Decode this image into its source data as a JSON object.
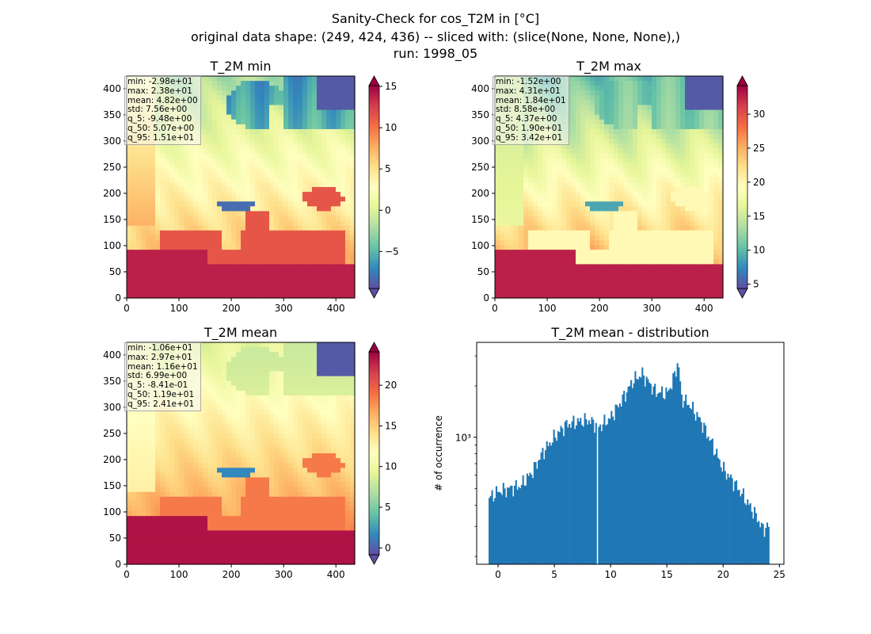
{
  "figure": {
    "title_lines": [
      "Sanity-Check for cos_T2M in [°C]",
      "original data shape: (249, 424, 436) -- sliced with: (slice(None, None, None),)",
      "run: 1998_05"
    ]
  },
  "chart_data": [
    {
      "type": "heatmap",
      "title": "T_2M min",
      "colormap": "Spectral_r",
      "xticks": [
        0,
        100,
        200,
        300,
        400
      ],
      "yticks": [
        0,
        50,
        100,
        150,
        200,
        250,
        300,
        350,
        400
      ],
      "xlim": [
        0,
        436
      ],
      "ylim": [
        0,
        424
      ],
      "colorbar": {
        "range": [
          -9.48,
          15.1
        ],
        "ticks": [
          -5,
          0,
          5,
          10,
          15
        ]
      },
      "stats": [
        "min: -2.98e+01",
        "max: 2.38e+01",
        "mean: 4.82e+00",
        "std: 7.56e+00",
        "q_5: -9.48e+00",
        "q_50: 5.07e+00",
        "q_95: 1.51e+01"
      ],
      "map_field": "cold"
    },
    {
      "type": "heatmap",
      "title": "T_2M max",
      "colormap": "Spectral_r",
      "xticks": [
        0,
        100,
        200,
        300,
        400
      ],
      "yticks": [
        0,
        50,
        100,
        150,
        200,
        250,
        300,
        350,
        400
      ],
      "xlim": [
        0,
        436
      ],
      "ylim": [
        0,
        424
      ],
      "colorbar": {
        "range": [
          4.37,
          34.2
        ],
        "ticks": [
          5,
          10,
          15,
          20,
          25,
          30
        ]
      },
      "stats": [
        "min: -1.52e+00",
        "max: 4.31e+01",
        "mean: 1.84e+01",
        "std: 8.58e+00",
        "q_5: 4.37e+00",
        "q_50: 1.90e+01",
        "q_95: 3.42e+01"
      ],
      "map_field": "warm"
    },
    {
      "type": "heatmap",
      "title": "T_2M mean",
      "colormap": "Spectral_r",
      "xticks": [
        0,
        100,
        200,
        300,
        400
      ],
      "yticks": [
        0,
        50,
        100,
        150,
        200,
        250,
        300,
        350,
        400
      ],
      "xlim": [
        0,
        436
      ],
      "ylim": [
        0,
        424
      ],
      "colorbar": {
        "range": [
          -0.841,
          24.1
        ],
        "ticks": [
          0,
          5,
          10,
          15,
          20
        ]
      },
      "stats": [
        "min: -1.06e+01",
        "max: 2.97e+01",
        "mean: 1.16e+01",
        "std: 6.99e+00",
        "q_5: -8.41e-01",
        "q_50: 1.19e+01",
        "q_95: 2.41e+01"
      ],
      "map_field": "mid"
    },
    {
      "type": "bar",
      "title": "T_2M mean - distribution",
      "ylabel": "# of occurrence",
      "yscale": "log",
      "xlim": [
        -1.9,
        25.4
      ],
      "ylim": [
        180,
        3600
      ],
      "xticks": [
        0,
        5,
        10,
        15,
        20,
        25
      ],
      "yticks": [
        1000
      ],
      "ytick_labels": [
        "10³"
      ],
      "color": "#1f77b4",
      "bin_range": [
        -0.841,
        24.1
      ],
      "bin_count": 200,
      "profile": [
        [
          -0.8,
          440
        ],
        [
          0,
          480
        ],
        [
          1,
          500
        ],
        [
          2,
          520
        ],
        [
          3,
          620
        ],
        [
          4,
          820
        ],
        [
          5,
          1000
        ],
        [
          6,
          1180
        ],
        [
          7,
          1230
        ],
        [
          8,
          1260
        ],
        [
          8.85,
          1180
        ],
        [
          9,
          1150
        ],
        [
          10,
          1300
        ],
        [
          11,
          1650
        ],
        [
          12,
          2150
        ],
        [
          12.8,
          2350
        ],
        [
          13.5,
          2050
        ],
        [
          14,
          1850
        ],
        [
          15,
          1800
        ],
        [
          15.5,
          2100
        ],
        [
          16,
          2800
        ],
        [
          16.3,
          1700
        ],
        [
          17,
          1550
        ],
        [
          18,
          1250
        ],
        [
          19,
          920
        ],
        [
          20,
          650
        ],
        [
          21,
          540
        ],
        [
          22,
          430
        ],
        [
          23,
          340
        ],
        [
          23.5,
          290
        ],
        [
          24,
          300
        ]
      ],
      "gaps": [
        8.85
      ]
    }
  ],
  "colors": {
    "bar": "#1f77b4"
  }
}
